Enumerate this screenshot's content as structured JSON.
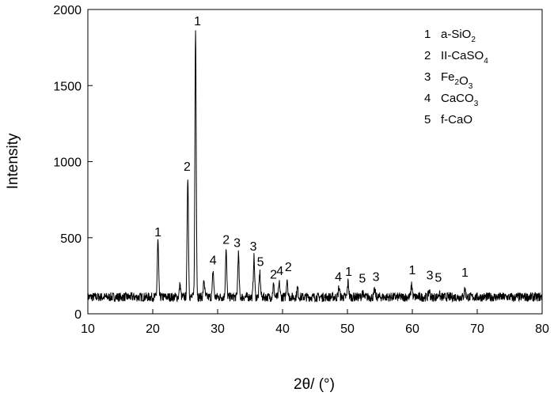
{
  "chart_data": {
    "type": "line",
    "xlabel": "2θ/ (°)",
    "ylabel": "Intensity",
    "xlim": [
      10,
      80
    ],
    "ylim": [
      0,
      2000
    ],
    "x_ticks": [
      "10",
      "20",
      "30",
      "40",
      "50",
      "60",
      "70",
      "80"
    ],
    "y_ticks": [
      "0",
      "500",
      "1000",
      "1500",
      "2000"
    ],
    "grid": false,
    "legend_position": "top-right",
    "legend": [
      {
        "num": "1",
        "label": "a-SiO2"
      },
      {
        "num": "2",
        "label": "II-CaSO4"
      },
      {
        "num": "3",
        "label": "Fe2O3"
      },
      {
        "num": "4",
        "label": "CaCO3"
      },
      {
        "num": "5",
        "label": "f-CaO"
      }
    ],
    "baseline": 110,
    "peaks": [
      {
        "x": 20.8,
        "y": 480
      },
      {
        "x": 24.2,
        "y": 190
      },
      {
        "x": 25.4,
        "y": 910
      },
      {
        "x": 26.6,
        "y": 1870
      },
      {
        "x": 27.9,
        "y": 220
      },
      {
        "x": 29.3,
        "y": 280
      },
      {
        "x": 31.3,
        "y": 420
      },
      {
        "x": 33.2,
        "y": 395
      },
      {
        "x": 35.6,
        "y": 370
      },
      {
        "x": 36.5,
        "y": 270
      },
      {
        "x": 38.6,
        "y": 190
      },
      {
        "x": 39.5,
        "y": 200
      },
      {
        "x": 40.7,
        "y": 235
      },
      {
        "x": 42.3,
        "y": 170
      },
      {
        "x": 48.7,
        "y": 175
      },
      {
        "x": 50.1,
        "y": 210
      },
      {
        "x": 52.3,
        "y": 140
      },
      {
        "x": 54.2,
        "y": 155
      },
      {
        "x": 59.9,
        "y": 195
      },
      {
        "x": 62.6,
        "y": 155
      },
      {
        "x": 64.1,
        "y": 135
      },
      {
        "x": 68.1,
        "y": 165
      },
      {
        "x": 75.6,
        "y": 100
      }
    ],
    "peak_labels": [
      {
        "x": 20.8,
        "y": 510,
        "text": "1"
      },
      {
        "x": 25.3,
        "y": 940,
        "text": "2"
      },
      {
        "x": 26.9,
        "y": 1895,
        "text": "1"
      },
      {
        "x": 29.3,
        "y": 325,
        "text": "4"
      },
      {
        "x": 31.3,
        "y": 460,
        "text": "2"
      },
      {
        "x": 33.0,
        "y": 440,
        "text": "3"
      },
      {
        "x": 35.5,
        "y": 415,
        "text": "3"
      },
      {
        "x": 36.6,
        "y": 315,
        "text": "5"
      },
      {
        "x": 38.6,
        "y": 230,
        "text": "2"
      },
      {
        "x": 39.6,
        "y": 255,
        "text": "4"
      },
      {
        "x": 40.9,
        "y": 280,
        "text": "2"
      },
      {
        "x": 48.6,
        "y": 215,
        "text": "4"
      },
      {
        "x": 50.2,
        "y": 250,
        "text": "1"
      },
      {
        "x": 52.3,
        "y": 205,
        "text": "5"
      },
      {
        "x": 54.4,
        "y": 215,
        "text": "3"
      },
      {
        "x": 60.0,
        "y": 260,
        "text": "1"
      },
      {
        "x": 62.7,
        "y": 225,
        "text": "3"
      },
      {
        "x": 64.0,
        "y": 210,
        "text": "5"
      },
      {
        "x": 68.1,
        "y": 245,
        "text": "1"
      }
    ]
  }
}
